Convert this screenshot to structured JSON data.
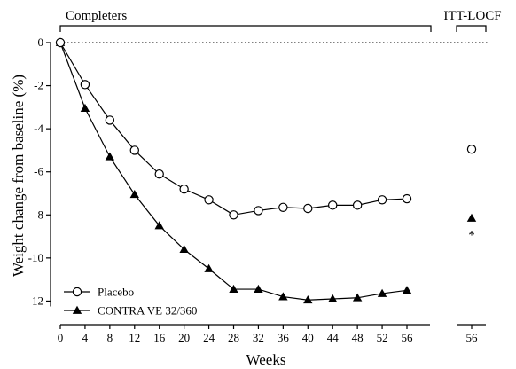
{
  "chart_data": {
    "type": "line",
    "xlabel": "Weeks",
    "ylabel": "Weight change from baseline (%)",
    "xlim": [
      0,
      60
    ],
    "ylim": [
      -12.6,
      0
    ],
    "x_ticks": [
      0,
      4,
      8,
      12,
      16,
      20,
      24,
      28,
      32,
      36,
      40,
      44,
      48,
      52,
      56
    ],
    "y_ticks": [
      0,
      -2,
      -4,
      -6,
      -8,
      -10,
      -12
    ],
    "reference_line": {
      "y": 0,
      "style": "dotted"
    },
    "brackets": [
      {
        "label": "Completers"
      },
      {
        "label": "ITT-LOCF"
      }
    ],
    "x": [
      0,
      4,
      8,
      12,
      16,
      20,
      24,
      28,
      32,
      36,
      40,
      44,
      48,
      52,
      56
    ],
    "series": [
      {
        "name": "Placebo",
        "marker": "open-circle",
        "values": [
          0,
          -1.95,
          -3.6,
          -5.0,
          -6.1,
          -6.8,
          -7.3,
          -8.0,
          -7.8,
          -7.65,
          -7.7,
          -7.55,
          -7.55,
          -7.3,
          -7.25
        ]
      },
      {
        "name": "CONTRA VE 32/360",
        "marker": "filled-triangle",
        "values": [
          0,
          -3.05,
          -5.3,
          -7.05,
          -8.5,
          -9.6,
          -10.5,
          -11.45,
          -11.45,
          -11.8,
          -11.95,
          -11.9,
          -11.85,
          -11.65,
          -11.5
        ]
      }
    ],
    "itt_locf": {
      "x_tick": "56",
      "placebo": -4.95,
      "contrave": -8.15,
      "significance_marker": "*",
      "significance_value": -8.75
    },
    "legend": {
      "placement": "bottom-left"
    }
  }
}
